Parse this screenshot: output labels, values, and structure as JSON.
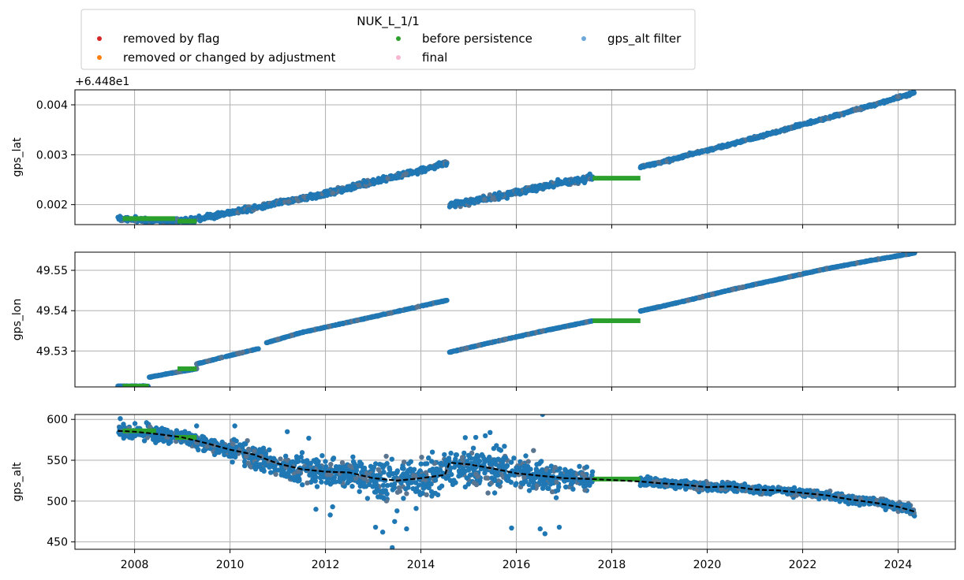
{
  "legend": {
    "title": "NUK_L_1/1",
    "entries": [
      {
        "label": "removed by flag",
        "color": "#d62728"
      },
      {
        "label": "removed or changed by adjustment",
        "color": "#ff7f0e"
      },
      {
        "label": "before persistence",
        "color": "#2ca02c"
      },
      {
        "label": "final",
        "color": "#f7b6d2"
      },
      {
        "label": "gps_alt filter",
        "color": "#6ea8d9"
      }
    ]
  },
  "colors": {
    "data": "#1f77b4",
    "persistence": "#2ca02c",
    "filter": "#000000",
    "grid": "#b0b0b0"
  },
  "chart_data": [
    {
      "type": "scatter",
      "ylabel": "gps_lat",
      "offset_label": "+6.448e1",
      "xlim": [
        2006.75,
        2025.2
      ],
      "ylim": [
        0.0016,
        0.0043
      ],
      "xticks": [
        2008,
        2010,
        2012,
        2014,
        2016,
        2018,
        2020,
        2022,
        2024
      ],
      "yticks": [
        {
          "v": 0.002,
          "l": "0.002"
        },
        {
          "v": 0.003,
          "l": "0.003"
        },
        {
          "v": 0.004,
          "l": "0.004"
        }
      ],
      "series": [
        {
          "role": "data",
          "x": [
            2007.65,
            2007.9,
            2008.3,
            2008.9,
            2009.2,
            2009.6,
            2010.0,
            2010.5,
            2011.0,
            2011.5,
            2012.0,
            2012.5,
            2013.0,
            2013.5,
            2014.0,
            2014.55
          ],
          "y": [
            0.00172,
            0.00171,
            0.00168,
            0.00167,
            0.0017,
            0.00176,
            0.00184,
            0.00193,
            0.00203,
            0.00212,
            0.00222,
            0.00234,
            0.00246,
            0.00257,
            0.00269,
            0.00284
          ],
          "noise": 6e-05
        },
        {
          "role": "data",
          "x": [
            2014.6,
            2015.0,
            2015.5,
            2016.0,
            2016.5,
            2017.0,
            2017.6
          ],
          "y": [
            0.002,
            0.00205,
            0.00215,
            0.00225,
            0.00235,
            0.00244,
            0.00254
          ],
          "noise": 7e-05
        },
        {
          "role": "data",
          "x": [
            2018.6,
            2019.0,
            2019.5,
            2020.0,
            2020.5,
            2021.0,
            2021.5,
            2022.0,
            2022.5,
            2023.0,
            2023.5,
            2024.0,
            2024.35
          ],
          "y": [
            0.00275,
            0.00284,
            0.00297,
            0.00309,
            0.00321,
            0.00334,
            0.00347,
            0.00361,
            0.00373,
            0.00387,
            0.004,
            0.00415,
            0.00424
          ],
          "noise": 3e-05
        },
        {
          "role": "persistence",
          "x": [
            2007.75,
            2008.85
          ],
          "y": [
            0.00172,
            0.00172
          ]
        },
        {
          "role": "persistence",
          "x": [
            2008.9,
            2009.3
          ],
          "y": [
            0.00167,
            0.00167
          ]
        },
        {
          "role": "persistence",
          "x": [
            2017.6,
            2018.6
          ],
          "y": [
            0.00253,
            0.00253
          ]
        }
      ]
    },
    {
      "type": "scatter",
      "ylabel": "gps_lon",
      "xlim": [
        2006.75,
        2025.2
      ],
      "ylim": [
        49.5211,
        49.5545
      ],
      "xticks": [
        2008,
        2010,
        2012,
        2014,
        2016,
        2018,
        2020,
        2022,
        2024
      ],
      "yticks": [
        {
          "v": 49.53,
          "l": "49.53"
        },
        {
          "v": 49.54,
          "l": "49.54"
        },
        {
          "v": 49.55,
          "l": "49.55"
        }
      ],
      "series": [
        {
          "role": "data",
          "x": [
            2007.65,
            2008.3
          ],
          "y": [
            49.5213,
            49.5213
          ],
          "noise": 8e-05
        },
        {
          "role": "data",
          "x": [
            2008.3,
            2008.9,
            2009.3
          ],
          "y": [
            49.5235,
            49.5248,
            49.5256
          ],
          "noise": 0.0001
        },
        {
          "role": "data",
          "x": [
            2009.3,
            2009.9,
            2010.6
          ],
          "y": [
            49.5268,
            49.5286,
            49.5306
          ],
          "noise": 0.0001
        },
        {
          "role": "data",
          "x": [
            2010.75,
            2011.5,
            2012.5,
            2013.5,
            2014.55
          ],
          "y": [
            49.532,
            49.5346,
            49.5372,
            49.5398,
            49.5426
          ],
          "noise": 0.0001
        },
        {
          "role": "data",
          "x": [
            2014.6,
            2015.5,
            2016.5,
            2017.6
          ],
          "y": [
            49.5297,
            49.5322,
            49.5348,
            49.5375
          ],
          "noise": 0.0001
        },
        {
          "role": "data",
          "x": [
            2018.6,
            2019.5,
            2020.5,
            2021.5,
            2022.5,
            2023.5,
            2024.35
          ],
          "y": [
            49.5399,
            49.5423,
            49.5452,
            49.5478,
            49.5504,
            49.5526,
            49.5543
          ],
          "noise": 0.0001
        },
        {
          "role": "persistence",
          "x": [
            2007.75,
            2008.3
          ],
          "y": [
            49.5213,
            49.5213
          ]
        },
        {
          "role": "persistence",
          "x": [
            2008.9,
            2009.3
          ],
          "y": [
            49.5256,
            49.5256
          ]
        },
        {
          "role": "persistence",
          "x": [
            2017.6,
            2018.6
          ],
          "y": [
            49.5375,
            49.5375
          ]
        }
      ]
    },
    {
      "type": "scatter",
      "ylabel": "gps_alt",
      "xlim": [
        2006.75,
        2025.2
      ],
      "ylim": [
        441,
        606
      ],
      "xticks": [
        2008,
        2010,
        2012,
        2014,
        2016,
        2018,
        2020,
        2022,
        2024
      ],
      "xticklabels": [
        "2008",
        "2010",
        "2012",
        "2014",
        "2016",
        "2018",
        "2020",
        "2022",
        "2024"
      ],
      "yticks": [
        {
          "v": 450,
          "l": "450"
        },
        {
          "v": 500,
          "l": "500"
        },
        {
          "v": 550,
          "l": "550"
        },
        {
          "v": 600,
          "l": "600"
        }
      ],
      "series": [
        {
          "role": "data",
          "x": [
            2007.65,
            2008.0,
            2008.5,
            2009.0,
            2009.5,
            2010.0,
            2010.5,
            2011.0,
            2011.5,
            2012.0,
            2012.5,
            2013.0,
            2013.5,
            2014.0,
            2014.5,
            2015.0,
            2015.5,
            2016.0,
            2016.5,
            2017.0,
            2017.6
          ],
          "y": [
            586,
            585,
            583,
            578,
            570,
            562,
            555,
            545,
            538,
            536,
            534,
            527,
            524,
            528,
            538,
            544,
            541,
            536,
            530,
            530,
            527
          ],
          "noise": [
            10,
            12,
            12,
            10,
            12,
            14,
            16,
            18,
            22,
            22,
            22,
            28,
            34,
            30,
            30,
            32,
            32,
            28,
            26,
            22,
            14
          ]
        },
        {
          "role": "data",
          "x": [
            2018.6,
            2019.0,
            2019.5,
            2020.0,
            2020.5,
            2021.0,
            2021.5,
            2022.0,
            2022.5,
            2023.0,
            2023.5,
            2024.0,
            2024.35
          ],
          "y": [
            524,
            522,
            520,
            517,
            518,
            514,
            513,
            510,
            507,
            502,
            499,
            494,
            488
          ],
          "noise": [
            6,
            6,
            6,
            6,
            6,
            6,
            6,
            6,
            6,
            6,
            6,
            7,
            8
          ]
        },
        {
          "role": "outliers",
          "x": [
            2007.7,
            2008.25,
            2009.3,
            2010.1,
            2010.5,
            2010.55,
            2011.2,
            2011.65,
            2011.8,
            2012.1,
            2012.15,
            2013.05,
            2013.2,
            2013.4,
            2013.45,
            2013.5,
            2013.7,
            2013.9,
            2014.05,
            2015.15,
            2015.35,
            2015.45,
            2015.9,
            2016.5,
            2016.9,
            2016.6,
            2016.55
          ],
          "y": [
            601,
            596,
            592,
            592,
            554,
            546,
            585,
            577,
            490,
            483,
            493,
            468,
            462,
            443,
            475,
            488,
            466,
            491,
            521,
            578,
            580,
            584,
            467,
            466,
            468,
            460,
            606
          ]
        },
        {
          "role": "persistence",
          "x": [
            2007.75,
            2008.45
          ],
          "y": [
            586,
            586
          ]
        },
        {
          "role": "persistence",
          "x": [
            2008.85,
            2009.3
          ],
          "y": [
            578,
            578
          ]
        },
        {
          "role": "persistence",
          "x": [
            2017.6,
            2018.6
          ],
          "y": [
            527,
            527
          ]
        },
        {
          "role": "filter",
          "x": [
            2007.65,
            2008.0,
            2008.5,
            2009.0,
            2009.5,
            2010.0,
            2010.5,
            2011.0,
            2011.5,
            2012.0,
            2012.5,
            2013.0,
            2013.5,
            2014.0,
            2014.5,
            2014.6,
            2015.0,
            2015.5,
            2016.0,
            2016.5,
            2017.0,
            2017.6,
            2018.6,
            2019.0,
            2019.5,
            2020.0,
            2020.5,
            2021.0,
            2021.5,
            2022.0,
            2022.5,
            2023.0,
            2023.5,
            2024.0,
            2024.35
          ],
          "y": [
            586,
            585,
            582,
            578,
            571,
            563,
            557,
            546,
            539,
            536,
            535,
            528,
            525,
            528,
            532,
            547,
            545,
            540,
            534,
            531,
            528,
            527,
            524,
            522,
            520,
            517,
            518,
            514,
            513,
            510,
            507,
            502,
            498,
            493,
            487
          ]
        }
      ]
    }
  ]
}
